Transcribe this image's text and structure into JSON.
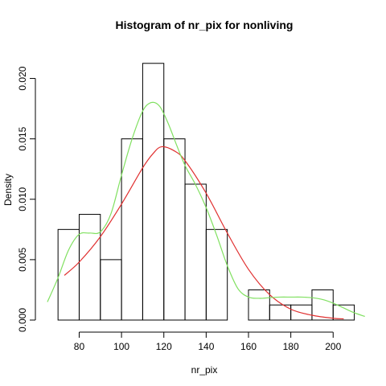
{
  "chart_data": {
    "type": "bar",
    "title": "Histogram of nr_pix for nonliving",
    "xlabel": "nr_pix",
    "ylabel": "Density",
    "bin_edges": [
      70,
      80,
      90,
      100,
      110,
      120,
      130,
      140,
      150,
      160,
      170,
      180,
      190,
      200,
      210
    ],
    "values": [
      0.0075,
      0.00875,
      0.005,
      0.015,
      0.02125,
      0.015,
      0.01125,
      0.0075,
      0,
      0.0025,
      0.00125,
      0.00125,
      0.0025,
      0.00125
    ],
    "xlim": [
      65,
      217
    ],
    "ylim": [
      0,
      0.0225
    ],
    "xticks": [
      80,
      100,
      120,
      140,
      160,
      180,
      200
    ],
    "yticks": [
      0,
      0.005,
      0.01,
      0.015,
      0.02
    ],
    "ytick_labels": [
      "0.000",
      "0.005",
      "0.010",
      "0.015",
      "0.020"
    ],
    "grid": false,
    "curves": [
      {
        "color": "#e03030",
        "type": "normal-density",
        "x": [
          73,
          80,
          90,
          100,
          110,
          115,
          119,
          125,
          130,
          140,
          150,
          160,
          170,
          180,
          190,
          200,
          205
        ],
        "y": [
          0.0037,
          0.0048,
          0.0069,
          0.0096,
          0.0126,
          0.0138,
          0.01435,
          0.014,
          0.0132,
          0.0105,
          0.0072,
          0.0042,
          0.0021,
          0.0009,
          0.0004,
          0.00015,
          0.0001
        ]
      },
      {
        "color": "#80e060",
        "type": "kernel-density",
        "x": [
          65,
          70,
          75,
          80,
          85,
          90,
          95,
          100,
          105,
          110,
          114,
          118,
          122,
          126,
          130,
          135,
          140,
          145,
          150,
          155,
          160,
          165,
          170,
          175,
          180,
          185,
          190,
          195,
          200,
          205,
          210,
          215
        ],
        "y": [
          0.0015,
          0.0035,
          0.0058,
          0.0071,
          0.0072,
          0.0073,
          0.0088,
          0.012,
          0.015,
          0.0173,
          0.018,
          0.0177,
          0.0163,
          0.0145,
          0.0128,
          0.0112,
          0.0093,
          0.007,
          0.0045,
          0.0026,
          0.0019,
          0.0018,
          0.00185,
          0.0019,
          0.0019,
          0.0019,
          0.00185,
          0.0017,
          0.0014,
          0.001,
          0.0006,
          0.0003
        ]
      }
    ]
  }
}
